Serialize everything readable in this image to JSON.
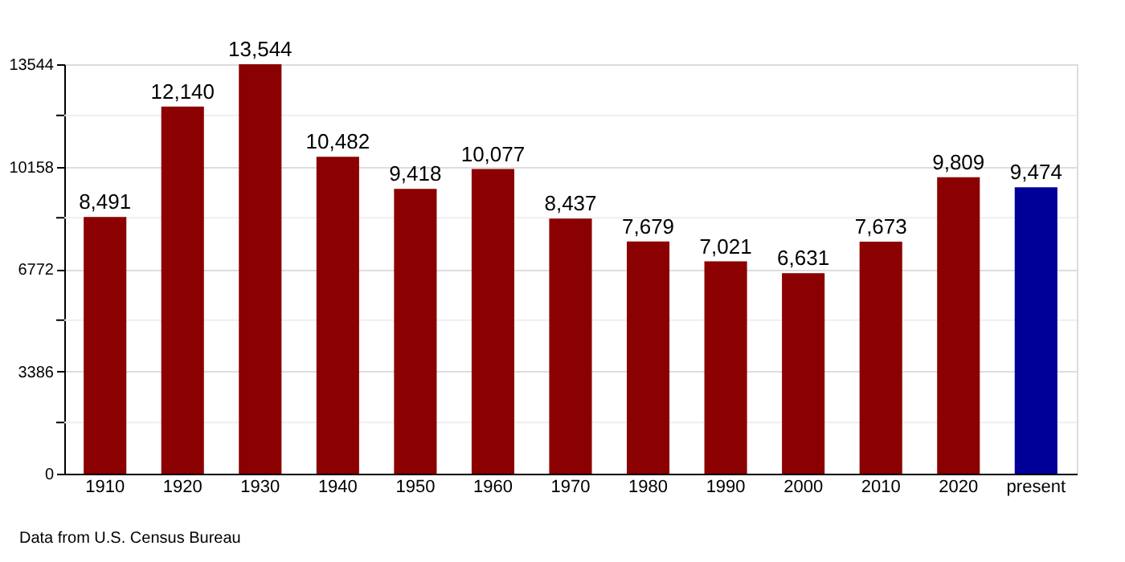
{
  "chart_data": {
    "type": "bar",
    "categories": [
      "1910",
      "1920",
      "1930",
      "1940",
      "1950",
      "1960",
      "1970",
      "1980",
      "1990",
      "2000",
      "2010",
      "2020",
      "present"
    ],
    "values": [
      8491,
      12140,
      13544,
      10482,
      9418,
      10077,
      8437,
      7679,
      7021,
      6631,
      7673,
      9809,
      9474
    ],
    "colors": [
      "#8b0000",
      "#8b0000",
      "#8b0000",
      "#8b0000",
      "#8b0000",
      "#8b0000",
      "#8b0000",
      "#8b0000",
      "#8b0000",
      "#8b0000",
      "#8b0000",
      "#8b0000",
      "#000099"
    ],
    "ylim": [
      0,
      13544
    ],
    "yticks": [
      0,
      {
        "value": 1693,
        "label": null
      },
      3386,
      {
        "value": 5079,
        "label": null
      },
      6772,
      {
        "value": 8465,
        "label": null
      },
      10158,
      {
        "value": 11851,
        "label": null
      },
      13544
    ],
    "grid": "y",
    "value_labels": [
      "8,491",
      "12,140",
      "13,544",
      "10,482",
      "9,418",
      "10,077",
      "8,437",
      "7,679",
      "7,021",
      "6,631",
      "7,673",
      "9,809",
      "9,474"
    ],
    "annotations": [
      "Data from U.S. Census Bureau"
    ]
  }
}
